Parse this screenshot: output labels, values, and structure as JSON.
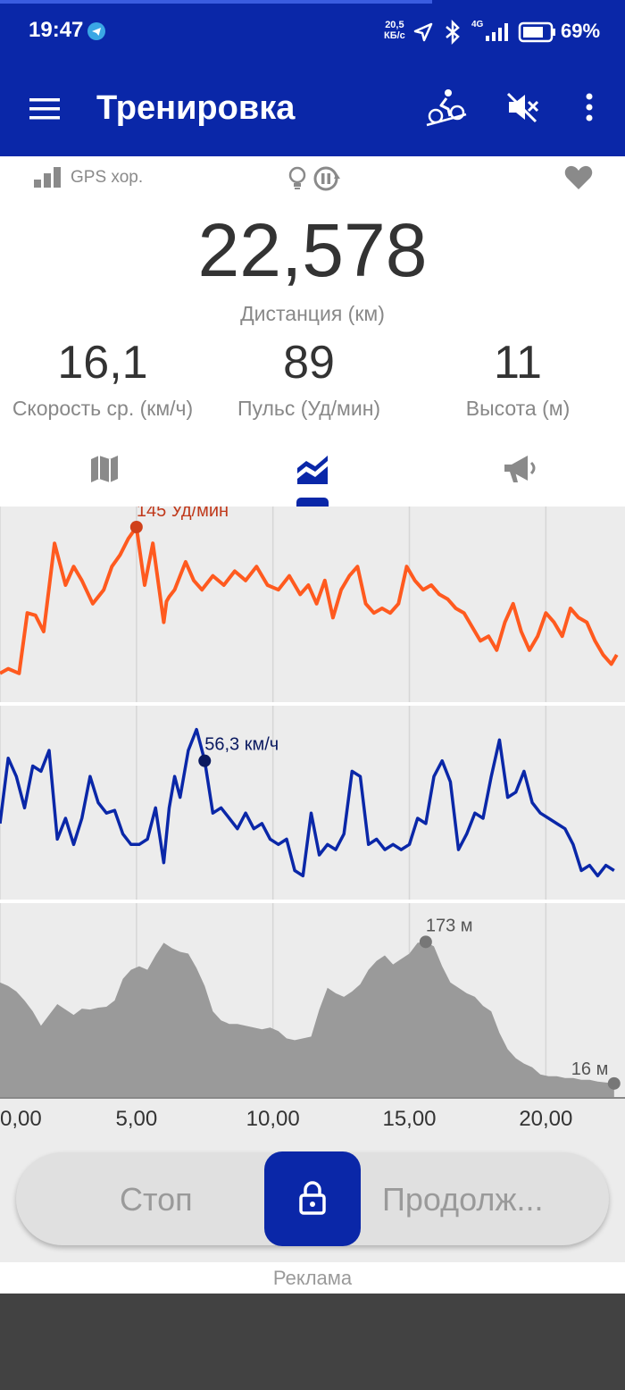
{
  "status_bar": {
    "time": "19:47",
    "net_speed_value": "20,5",
    "net_speed_unit": "КБ/с",
    "network_type": "4G",
    "battery": "69%"
  },
  "app_bar": {
    "title": "Тренировка"
  },
  "gps": {
    "label": "GPS хор."
  },
  "summary": {
    "distance_value": "22,578",
    "distance_label": "Дистанция (км)",
    "speed_value": "16,1",
    "speed_label": "Скорость ср. (км/ч)",
    "pulse_value": "89",
    "pulse_label": "Пульс (Уд/мин)",
    "altitude_value": "11",
    "altitude_label": "Высота (м)"
  },
  "tabs": [
    {
      "icon": "map-icon",
      "active": false
    },
    {
      "icon": "chart-icon",
      "active": true
    },
    {
      "icon": "megaphone-icon",
      "active": false
    }
  ],
  "chart_data": [
    {
      "type": "line",
      "series": [
        {
          "color": "#ff5a1f",
          "x": [
            0,
            0.3,
            0.7,
            1,
            1.3,
            1.6,
            2,
            2.4,
            2.7,
            3,
            3.4,
            3.8,
            4.1,
            4.4,
            4.7,
            5,
            5.3,
            5.6,
            6,
            6.1,
            6.2,
            6.4,
            6.6,
            6.8,
            7.1,
            7.4,
            7.8,
            8.2,
            8.6,
            9,
            9.4,
            9.8,
            10.2,
            10.6,
            11,
            11.3,
            11.6,
            11.9,
            12.2,
            12.5,
            12.8,
            13.1,
            13.4,
            13.7,
            14,
            14.3,
            14.6,
            14.9,
            15.2,
            15.5,
            15.8,
            16.1,
            16.4,
            16.7,
            17,
            17.3,
            17.6,
            17.9,
            18.2,
            18.5,
            18.8,
            19.1,
            19.4,
            19.7,
            20,
            20.3,
            20.6,
            20.9,
            21.2,
            21.5,
            21.8,
            22.1,
            22.4,
            22.6
          ],
          "y": [
            82,
            84,
            82,
            108,
            107,
            100,
            138,
            120,
            128,
            122,
            112,
            118,
            128,
            133,
            140,
            145,
            120,
            138,
            104,
            113,
            115,
            118,
            124,
            130,
            122,
            118,
            124,
            120,
            126,
            122,
            128,
            120,
            118,
            124,
            116,
            120,
            112,
            122,
            106,
            118,
            124,
            128,
            112,
            108,
            110,
            108,
            112,
            128,
            122,
            118,
            120,
            116,
            114,
            110,
            108,
            102,
            96,
            98,
            92,
            104,
            112,
            100,
            92,
            98,
            108,
            104,
            98,
            110,
            106,
            104,
            96,
            90,
            86,
            90
          ]
        }
      ],
      "annotations": [
        "145 Уд/мин"
      ]
    },
    {
      "type": "line",
      "series": [
        {
          "color": "#0a27a8",
          "x": [
            0,
            0.3,
            0.6,
            0.9,
            1.2,
            1.5,
            1.8,
            2.1,
            2.4,
            2.7,
            3,
            3.3,
            3.6,
            3.9,
            4.2,
            4.5,
            4.8,
            5.1,
            5.4,
            5.7,
            6,
            6.2,
            6.4,
            6.6,
            6.9,
            7.2,
            7.5,
            7.8,
            8.1,
            8.4,
            8.7,
            9,
            9.3,
            9.6,
            9.9,
            10.2,
            10.5,
            10.8,
            11.1,
            11.4,
            11.7,
            12,
            12.3,
            12.6,
            12.9,
            13.2,
            13.5,
            13.8,
            14.1,
            14.4,
            14.7,
            15,
            15.3,
            15.6,
            15.9,
            16.2,
            16.5,
            16.8,
            17.1,
            17.4,
            17.7,
            18,
            18.3,
            18.6,
            18.9,
            19.2,
            19.5,
            19.8,
            20.1,
            20.4,
            20.7,
            21,
            21.3,
            21.6,
            21.9,
            22.2,
            22.5
          ],
          "y": [
            20,
            45,
            38,
            26,
            42,
            40,
            48,
            14,
            22,
            12,
            22,
            38,
            28,
            24,
            25,
            16,
            12,
            12,
            14,
            26,
            5,
            26,
            38,
            30,
            48,
            56,
            44,
            24,
            26,
            22,
            18,
            24,
            18,
            20,
            14,
            12,
            14,
            2,
            0,
            24,
            8,
            12,
            10,
            16,
            40,
            38,
            12,
            14,
            10,
            12,
            10,
            12,
            22,
            20,
            38,
            44,
            36,
            10,
            16,
            24,
            22,
            38,
            52,
            30,
            32,
            40,
            28,
            24,
            22,
            20,
            18,
            12,
            2,
            4,
            0,
            4,
            2
          ]
        }
      ],
      "annotations": [
        "56,3 км/ч"
      ]
    },
    {
      "type": "area",
      "series": [
        {
          "color": "#9a9a9a",
          "x": [
            0,
            0.3,
            0.6,
            0.9,
            1.2,
            1.5,
            1.8,
            2.1,
            2.4,
            2.7,
            3,
            3.3,
            3.6,
            3.9,
            4.2,
            4.5,
            4.8,
            5.1,
            5.4,
            5.7,
            6,
            6.3,
            6.6,
            6.9,
            7.2,
            7.5,
            7.8,
            8.1,
            8.4,
            8.7,
            9,
            9.3,
            9.6,
            9.9,
            10.2,
            10.5,
            10.8,
            11.1,
            11.4,
            11.7,
            12,
            12.3,
            12.6,
            12.9,
            13.2,
            13.5,
            13.8,
            14.1,
            14.4,
            14.7,
            15,
            15.3,
            15.6,
            15.9,
            16.2,
            16.5,
            16.8,
            17.1,
            17.4,
            17.7,
            18,
            18.3,
            18.6,
            18.9,
            19.2,
            19.5,
            19.8,
            20.1,
            20.4,
            20.7,
            21,
            21.3,
            21.6,
            21.9,
            22.2,
            22.5
          ],
          "y": [
            128,
            124,
            118,
            108,
            96,
            80,
            92,
            104,
            98,
            92,
            99,
            98,
            100,
            101,
            108,
            132,
            142,
            146,
            142,
            158,
            172,
            166,
            162,
            160,
            144,
            124,
            96,
            86,
            82,
            82,
            80,
            78,
            76,
            78,
            74,
            66,
            64,
            66,
            68,
            98,
            122,
            116,
            112,
            118,
            126,
            142,
            152,
            158,
            148,
            154,
            160,
            172,
            173,
            168,
            146,
            128,
            122,
            116,
            112,
            102,
            96,
            72,
            54,
            44,
            38,
            34,
            26,
            24,
            24,
            22,
            22,
            20,
            20,
            18,
            17,
            16
          ]
        }
      ],
      "annotations": [
        "173 м",
        "16 м"
      ],
      "x_ticks": [
        "0,00",
        "5,00",
        "10,00",
        "15,00",
        "20,00"
      ]
    }
  ],
  "controls": {
    "stop_label": "Стоп",
    "resume_label": "Продолж..."
  },
  "ad": {
    "label": "Реклама"
  }
}
